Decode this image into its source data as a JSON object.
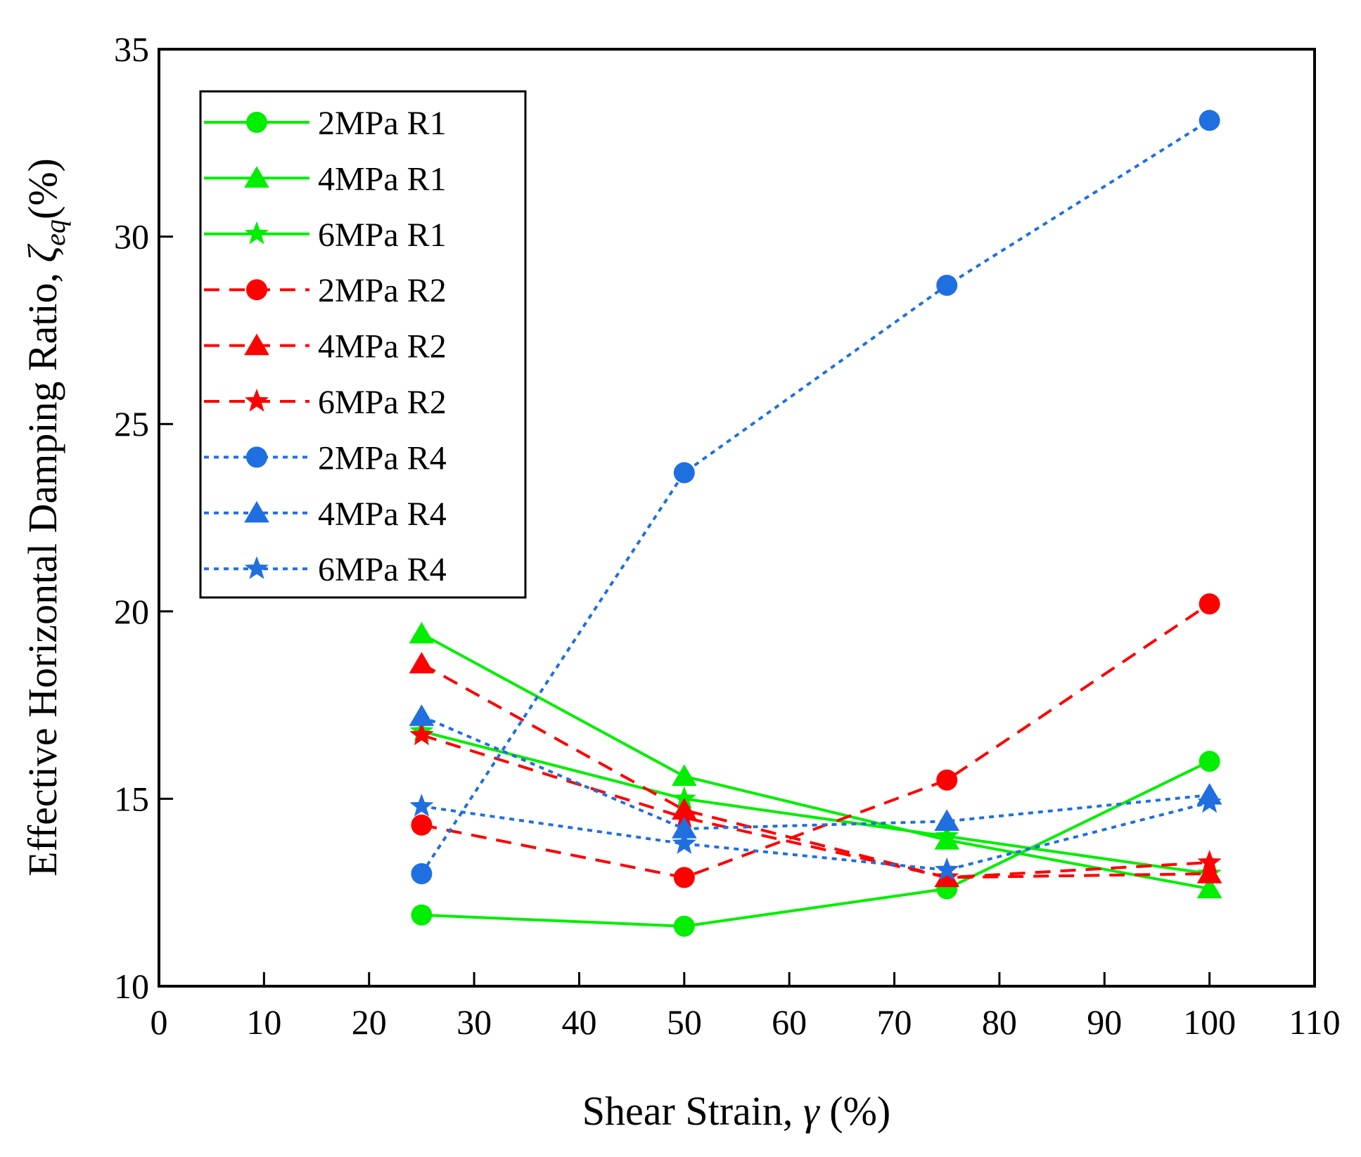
{
  "chart_data": {
    "type": "line",
    "title": "",
    "xlabel": "Shear Strain, γ (%)",
    "xlabel_parts": {
      "prefix": "Shear Strain, ",
      "symbol": "γ",
      "suffix": " (%)"
    },
    "ylabel": "Effective Horizontal Damping Ratio, ζeq(%)",
    "ylabel_parts": {
      "prefix": "Effective Horizontal Damping Ratio, ",
      "symbol": "ζ",
      "subscript": "eq",
      "suffix": "(%)"
    },
    "xlim": [
      0,
      110
    ],
    "ylim": [
      10,
      35
    ],
    "xticks": [
      0,
      10,
      20,
      30,
      40,
      50,
      60,
      70,
      80,
      90,
      100,
      110
    ],
    "yticks": [
      10,
      15,
      20,
      25,
      30,
      35
    ],
    "grid": false,
    "legend_position": "top-left",
    "x": [
      25,
      50,
      75,
      100
    ],
    "series": [
      {
        "name": "2MPa R1",
        "values": [
          11.9,
          11.6,
          12.6,
          16.0
        ],
        "color": "#00ee00",
        "dash": "solid",
        "marker": "circle"
      },
      {
        "name": "4MPa R1",
        "values": [
          19.4,
          15.6,
          13.9,
          12.6
        ],
        "color": "#00ee00",
        "dash": "solid",
        "marker": "triangle"
      },
      {
        "name": "6MPa R1",
        "values": [
          16.8,
          15.0,
          14.0,
          13.0
        ],
        "color": "#00ee00",
        "dash": "solid",
        "marker": "star"
      },
      {
        "name": "2MPa R2",
        "values": [
          14.3,
          12.9,
          15.5,
          20.2
        ],
        "color": "#ff0000",
        "dash": "dashed",
        "marker": "circle"
      },
      {
        "name": "4MPa R2",
        "values": [
          18.6,
          14.7,
          12.9,
          13.0
        ],
        "color": "#ff0000",
        "dash": "dashed",
        "marker": "triangle"
      },
      {
        "name": "6MPa R2",
        "values": [
          16.7,
          14.5,
          12.9,
          13.3
        ],
        "color": "#ff0000",
        "dash": "dashed",
        "marker": "star"
      },
      {
        "name": "2MPa R4",
        "values": [
          13.0,
          23.7,
          28.7,
          33.1
        ],
        "color": "#1f6fe0",
        "dash": "dotted",
        "marker": "circle"
      },
      {
        "name": "4MPa R4",
        "values": [
          17.2,
          14.2,
          14.4,
          15.1
        ],
        "color": "#1f6fe0",
        "dash": "dotted",
        "marker": "triangle"
      },
      {
        "name": "6MPa R4",
        "values": [
          14.8,
          13.8,
          13.1,
          14.9
        ],
        "color": "#1f6fe0",
        "dash": "dotted",
        "marker": "star"
      }
    ]
  }
}
